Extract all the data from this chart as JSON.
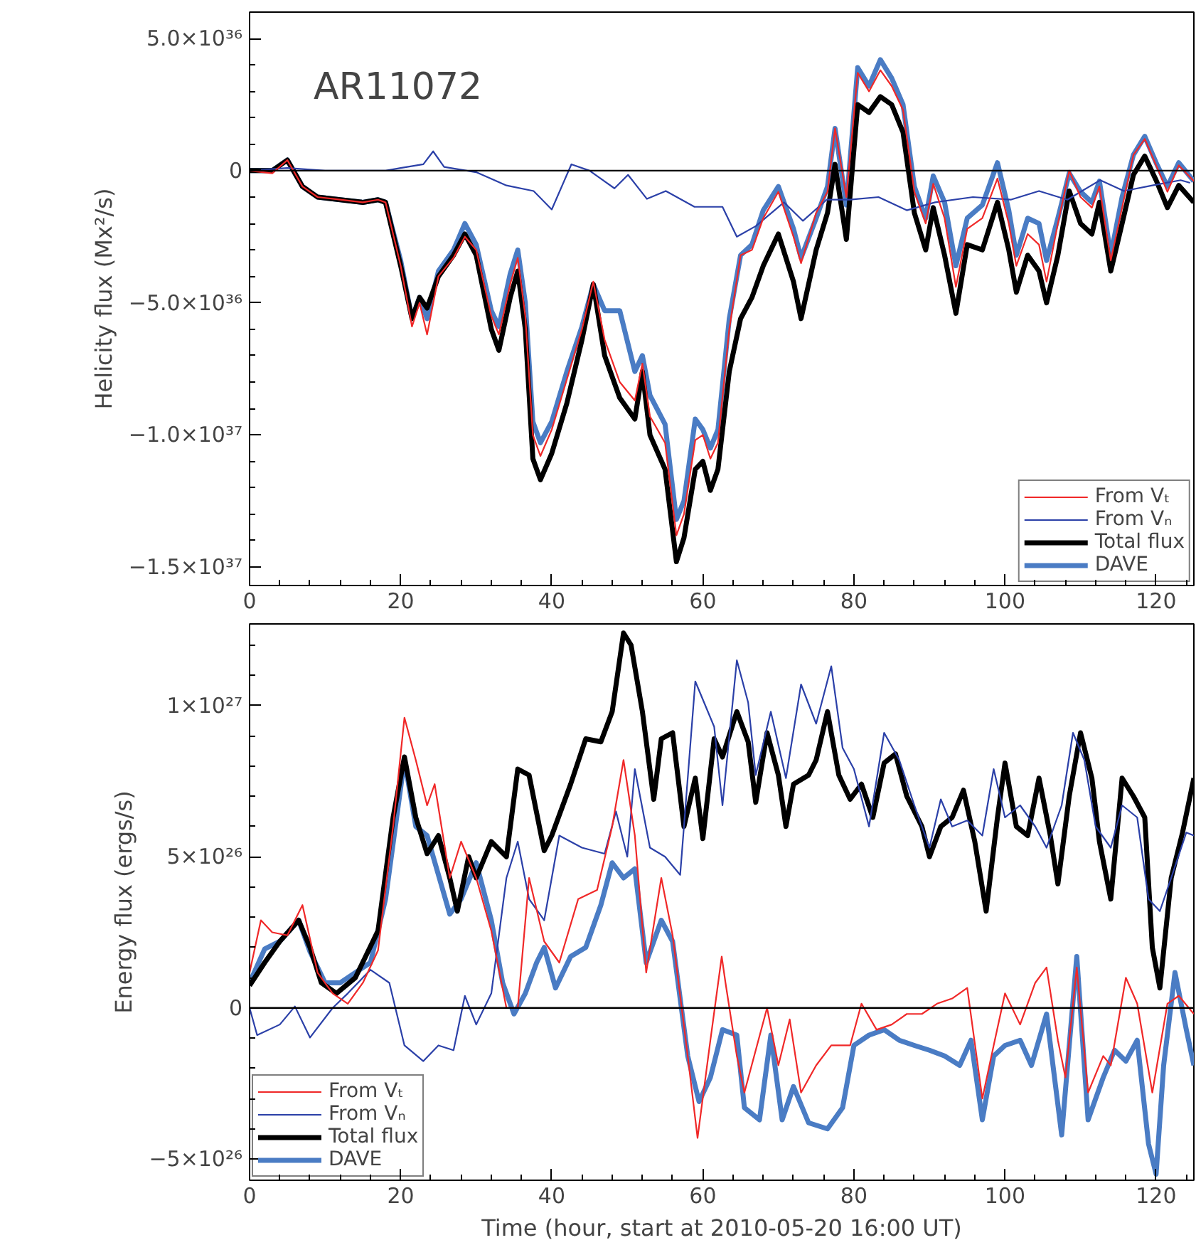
{
  "chart_data": [
    {
      "type": "line",
      "ylabel": "Helicity flux (Mx²/s)",
      "annotations": [
        "AR11072"
      ],
      "legend": "bottom right",
      "grid": false,
      "xlim": [
        0,
        125
      ],
      "xticks": [
        0,
        20,
        40,
        60,
        80,
        100,
        120
      ],
      "ylim": [
        -1.57e+37,
        6e+36
      ],
      "yticks": [
        {
          "value": 5e+36,
          "label": "5.0×10³⁶"
        },
        0,
        {
          "value": -5e+36,
          "label": "−5.0×10³⁶"
        },
        {
          "value": -1e+37,
          "label": "−1.0×10³⁷"
        },
        {
          "value": -1.5e+37,
          "label": "−1.5×10³⁷"
        }
      ],
      "ref_lines": [
        {
          "axis": "y",
          "value": 0,
          "color": "#000000"
        }
      ],
      "series": [
        {
          "name": "From Vₜ",
          "color": "#f02828",
          "x": [
            0,
            3,
            5,
            7,
            9,
            12,
            15,
            17,
            18,
            20,
            21.5,
            22.5,
            23.5,
            25,
            27,
            28.5,
            30,
            32,
            33,
            34.5,
            35.5,
            36.5,
            37.5,
            38.5,
            40,
            42,
            44,
            45.5,
            47,
            49,
            51,
            52,
            53,
            55,
            56.5,
            57.5,
            59,
            60,
            61,
            62,
            63.5,
            65,
            66.5,
            68,
            70,
            72,
            73,
            75,
            76.5,
            77.5,
            79,
            80.5,
            82,
            83.5,
            85,
            86.5,
            88,
            89.5,
            90.5,
            92,
            93.5,
            95,
            97,
            99,
            100.5,
            101.5,
            103,
            104.5,
            105.5,
            107,
            108.5,
            110,
            111.5,
            112.5,
            114,
            115.5,
            117,
            118.5,
            120,
            121.5,
            123,
            125
          ],
          "values": [
            0,
            -1e+35,
            4e+35,
            -6e+35,
            -1e+36,
            -1.1e+36,
            -1.2e+36,
            -1.1e+36,
            -1.2e+36,
            -3.6e+36,
            -5.9e+36,
            -5e+36,
            -6.2e+36,
            -4e+36,
            -3.3e+36,
            -2.5e+36,
            -3e+36,
            -5.5e+36,
            -6.2e+36,
            -4.3e+36,
            -3.3e+36,
            -5.5e+36,
            -1e+37,
            -1.08e+37,
            -9.8e+36,
            -7.9e+36,
            -6e+36,
            -4.2e+36,
            -6.4e+36,
            -8e+36,
            -8.7e+36,
            -7.3e+36,
            -9.3e+36,
            -1.03e+37,
            -1.38e+37,
            -1.3e+37,
            -1.02e+37,
            -1e+37,
            -1.09e+37,
            -1.03e+37,
            -6e+36,
            -3.2e+36,
            -3e+36,
            -1.8e+36,
            -8e+35,
            -2.5e+36,
            -3.5e+36,
            -1.6e+36,
            -8e+35,
            1.6e+36,
            -1e+36,
            3.7e+36,
            3e+36,
            3.8e+36,
            3.2e+36,
            2.3e+36,
            -8e+35,
            -2e+36,
            -5e+35,
            -1.8e+36,
            -4.4e+36,
            -2.2e+36,
            -1.8e+36,
            -3e+35,
            -2e+36,
            -3.6e+36,
            -2.4e+36,
            -2.8e+36,
            -4.2e+36,
            -2e+36,
            0,
            -1e+36,
            -1.4e+36,
            -6e+35,
            -3.4e+36,
            -1.4e+36,
            6e+35,
            1.2e+36,
            2e+35,
            -8e+35,
            2e+35,
            -4e+35
          ]
        },
        {
          "name": "From Vₙ",
          "color": "#2b40a8",
          "x": [
            0,
            5,
            10,
            18,
            20,
            23,
            24.3,
            25.75,
            30,
            34,
            37.6,
            40,
            42.6,
            45,
            48.3,
            50.1,
            52.6,
            55.1,
            58.9,
            62.6,
            64.5,
            67,
            70.75,
            73.25,
            76.4,
            79.5,
            83.25,
            87,
            90.75,
            95.75,
            100.75,
            104.5,
            108.25,
            112.6,
            115.75,
            119.5,
            123.25,
            124.5
          ],
          "values": [
            0,
            1e+35,
            0,
            0,
            1e+35,
            2.4e+35,
            7.3e+35,
            1.4e+35,
            -6e+34,
            -5.6e+35,
            -7.7e+35,
            -1.47e+36,
            2.4e+35,
            0,
            -6.7e+35,
            -1.6e+35,
            -1.07e+36,
            -7.7e+35,
            -1.37e+36,
            -1.37e+36,
            -2.5e+36,
            -2.1e+36,
            -1.2e+36,
            -1.9e+36,
            -1.1e+36,
            -1.1e+36,
            -1e+36,
            -1.5e+36,
            -1.2e+36,
            -1e+36,
            -1.1e+36,
            -7.7e+35,
            -1.1e+36,
            -3.6e+35,
            -7.7e+35,
            -5.6e+35,
            -3.6e+35,
            -4.6e+35
          ]
        },
        {
          "name": "Total flux",
          "color": "#000000",
          "x": [
            0,
            3,
            5,
            7,
            9,
            12,
            15,
            17,
            18,
            20,
            21.5,
            22.5,
            23.5,
            25,
            27,
            28.5,
            30,
            32,
            33,
            34.5,
            35.5,
            36.5,
            37.5,
            38.5,
            40,
            42,
            44,
            45.5,
            47,
            49,
            51,
            52,
            53,
            55,
            56.5,
            57.5,
            59,
            60,
            61,
            62,
            63.5,
            65,
            66.5,
            68,
            70,
            72,
            73,
            75,
            76.5,
            77.5,
            79,
            80.5,
            82,
            83.5,
            85,
            86.5,
            88,
            89.5,
            90.5,
            92,
            93.5,
            95,
            97,
            99,
            100.5,
            101.5,
            103,
            104.5,
            105.5,
            107,
            108.5,
            110,
            111.5,
            112.5,
            114,
            115.5,
            117,
            118.5,
            120,
            121.5,
            123,
            125
          ],
          "values": [
            0,
            0,
            4e+35,
            -6e+35,
            -1e+36,
            -1.1e+36,
            -1.2e+36,
            -1.1e+36,
            -1.2e+36,
            -3.6e+36,
            -5.6e+36,
            -4.8e+36,
            -5.2e+36,
            -4e+36,
            -3.2e+36,
            -2.4e+36,
            -3.2e+36,
            -6e+36,
            -6.8e+36,
            -4.8e+36,
            -3.8e+36,
            -6e+36,
            -1.09e+37,
            -1.17e+37,
            -1.07e+37,
            -8.8e+36,
            -6.4e+36,
            -4.3e+36,
            -7e+36,
            -8.6e+36,
            -9.4e+36,
            -7.6e+36,
            -1e+37,
            -1.13e+37,
            -1.48e+37,
            -1.39e+37,
            -1.13e+37,
            -1.1e+37,
            -1.21e+37,
            -1.13e+37,
            -7.6e+36,
            -5.6e+36,
            -4.8e+36,
            -3.6e+36,
            -2.4e+36,
            -4.2e+36,
            -5.6e+36,
            -3e+36,
            -1.6e+36,
            2.4e+35,
            -2.6e+36,
            2.5e+36,
            2.2e+36,
            2.8e+36,
            2.5e+36,
            1.45e+36,
            -1.6e+36,
            -3e+36,
            -1.4e+36,
            -3.2e+36,
            -5.4e+36,
            -2.8e+36,
            -3e+36,
            -1.2e+36,
            -3e+36,
            -4.6e+36,
            -3.2e+36,
            -3.8e+36,
            -5e+36,
            -3.2e+36,
            -7.7e+35,
            -2e+36,
            -2.4e+36,
            -1.2e+36,
            -3.8e+36,
            -2e+36,
            -1.6e+35,
            5.5e+35,
            -3.6e+35,
            -1.4e+36,
            -5.6e+35,
            -1.2e+36
          ]
        },
        {
          "name": "DAVE",
          "color": "#4a7cc4",
          "x": [
            0,
            3,
            5,
            7,
            9,
            12,
            15,
            17,
            18,
            20,
            21.5,
            22.5,
            23.5,
            25,
            27,
            28.5,
            30,
            32,
            33,
            34.5,
            35.5,
            36.5,
            37.5,
            38.5,
            40,
            42,
            44,
            45.5,
            47,
            49,
            51,
            52,
            53,
            55,
            56.5,
            57.5,
            59,
            60,
            61,
            62,
            63.5,
            65,
            66.5,
            68,
            70,
            72,
            73,
            75,
            76.5,
            77.5,
            79,
            80.5,
            82,
            83.5,
            85,
            86.5,
            88,
            89.5,
            90.5,
            92,
            93.5,
            95,
            97,
            99,
            100.5,
            101.5,
            103,
            104.5,
            105.5,
            107,
            108.5,
            110,
            111.5,
            112.5,
            114,
            115.5,
            117,
            118.5,
            120,
            121.5,
            123,
            125
          ],
          "values": [
            0,
            0,
            4e+35,
            -6e+35,
            -1e+36,
            -1.1e+36,
            -1.2e+36,
            -1.1e+36,
            -1.2e+36,
            -3.4e+36,
            -5.6e+36,
            -4.8e+36,
            -5.6e+36,
            -3.8e+36,
            -3e+36,
            -2e+36,
            -2.8e+36,
            -5.3e+36,
            -5.9e+36,
            -3.9e+36,
            -3e+36,
            -5e+36,
            -9.5e+36,
            -1.03e+37,
            -9.5e+36,
            -7.6e+36,
            -5.9e+36,
            -4.3e+36,
            -5.3e+36,
            -5.3e+36,
            -7.6e+36,
            -7e+36,
            -8.5e+36,
            -9.6e+36,
            -1.32e+37,
            -1.25e+37,
            -9.4e+36,
            -9.8e+36,
            -1.05e+37,
            -9.8e+36,
            -5.6e+36,
            -3.2e+36,
            -2.8e+36,
            -1.5e+36,
            -6e+35,
            -2.2e+36,
            -3.3e+36,
            -1.8e+36,
            -6e+35,
            1.6e+36,
            -1.3e+36,
            3.9e+36,
            3.2e+36,
            4.2e+36,
            3.5e+36,
            2.5e+36,
            -6e+35,
            -1.8e+36,
            -2e+35,
            -1.2e+36,
            -3.6e+36,
            -1.8e+36,
            -1.3e+36,
            3e+35,
            -1.5e+36,
            -3.2e+36,
            -1.8e+36,
            -2e+36,
            -3.4e+36,
            -1.8e+36,
            -1e+35,
            -8e+35,
            -1.2e+36,
            -4e+35,
            -3.2e+36,
            -1e+36,
            6e+35,
            1.3e+36,
            3e+35,
            -6e+35,
            3e+35,
            -4e+35
          ]
        }
      ]
    },
    {
      "type": "line",
      "xlabel": "Time (hour, start at 2010-05-20 16:00 UT)",
      "ylabel": "Energy flux (ergs/s)",
      "legend": "bottom left",
      "grid": false,
      "xlim": [
        0,
        125
      ],
      "xticks": [
        0,
        20,
        40,
        60,
        80,
        100,
        120
      ],
      "ylim": [
        -5.7e+26,
        1.27e+27
      ],
      "yticks": [
        {
          "value": 1e+27,
          "label": "1×10²⁷"
        },
        {
          "value": 5e+26,
          "label": "5×10²⁶"
        },
        0,
        {
          "value": -5e+26,
          "label": "−5×10²⁶"
        }
      ],
      "ref_lines": [
        {
          "axis": "y",
          "value": 0,
          "color": "#000000"
        }
      ],
      "series": [
        {
          "name": "From Vₜ",
          "color": "#f02828",
          "x": [
            0,
            1.5,
            3,
            5,
            7,
            9,
            11,
            13,
            15,
            17,
            19,
            20.5,
            22,
            23.5,
            24.5,
            26.5,
            28,
            30,
            32,
            34,
            35.5,
            37,
            39,
            41,
            43.5,
            46,
            48,
            49.5,
            51,
            52.5,
            54.5,
            56,
            58,
            59.3,
            61,
            62.5,
            63,
            64.5,
            65.5,
            67,
            68.5,
            70,
            71.5,
            73,
            75,
            77,
            79.5,
            81,
            83,
            85,
            87,
            89,
            91,
            93,
            95,
            97,
            98.5,
            100,
            102,
            104,
            105.5,
            107,
            108,
            109.5,
            111,
            113,
            114,
            116,
            117.5,
            119.5,
            121.5,
            123,
            125
          ],
          "values": [
            1.17e+26,
            2.9e+26,
            2.5e+26,
            2.4e+26,
            3.4e+26,
            1.17e+26,
            4.8e+25,
            1.4e+25,
            8.3e+25,
            1.9e+26,
            6e+26,
            9.6e+26,
            8.2e+26,
            6.7e+26,
            7.4e+26,
            4.3e+26,
            5.5e+26,
            4.3e+26,
            2.55e+26,
            0,
            0,
            4.3e+26,
            2.2e+26,
            1.5e+26,
            3.6e+26,
            3.9e+26,
            6e+26,
            8.2e+26,
            5.7e+26,
            1.17e+26,
            4.3e+26,
            2.4e+26,
            -1.59e+26,
            -4.3e+26,
            -1.07e+26,
            1.7e+26,
            8.3e+25,
            -1.59e+26,
            -2.8e+26,
            -1.4e+26,
            0,
            -1.9e+26,
            -3.8e+25,
            -2.8e+26,
            -1.9e+26,
            -1.24e+26,
            -1.24e+26,
            1.4e+25,
            -7.2e+25,
            -5.5e+25,
            -2e+25,
            -2e+25,
            1.4e+25,
            3.1e+25,
            6.6e+25,
            -3e+26,
            -1.24e+26,
            4.8e+25,
            -5.5e+25,
            8.3e+25,
            1.34e+26,
            -1.07e+26,
            -2.3e+26,
            1.34e+26,
            -2.8e+26,
            -1.59e+26,
            -1.9e+26,
            1e+26,
            1.4e+25,
            -2.8e+26,
            1.4e+25,
            4e+25,
            -2e+25
          ]
        },
        {
          "name": "From Vₙ",
          "color": "#2b40a8",
          "x": [
            0,
            1,
            4,
            6,
            8,
            11,
            13,
            16,
            18.5,
            20.5,
            23,
            25,
            27,
            28.5,
            30,
            32,
            34,
            35.5,
            37,
            39,
            41,
            44,
            47,
            48.5,
            50,
            51,
            53,
            55,
            57,
            59,
            60,
            61.5,
            62.6,
            64.5,
            66,
            67,
            69,
            71,
            73,
            75,
            77,
            78.5,
            80,
            82,
            84,
            86,
            88,
            90,
            91.5,
            93,
            95,
            97,
            98.5,
            100,
            102,
            104,
            105.5,
            107.5,
            109,
            110.5,
            112,
            114,
            115.5,
            117.5,
            119,
            120.5,
            122,
            124,
            125
          ],
          "values": [
            0,
            -9e+25,
            -5.5e+25,
            5e+24,
            -9.8e+25,
            0,
            4.8e+25,
            1.26e+26,
            8.3e+25,
            -1.24e+26,
            -1.76e+26,
            -1.24e+26,
            -1.4e+26,
            4e+25,
            -5.5e+25,
            4.8e+25,
            4.3e+26,
            5.5e+26,
            3.6e+26,
            2.9e+26,
            5.7e+26,
            5.3e+26,
            5.1e+26,
            6.5e+26,
            5e+26,
            7.9e+26,
            5.3e+26,
            5e+26,
            4.4e+26,
            1.08e+27,
            1.02e+27,
            9.3e+26,
            6.7e+26,
            1.15e+27,
            1.01e+27,
            7.7e+26,
            9.8e+26,
            7.6e+26,
            1.07e+27,
            9.4e+26,
            1.13e+27,
            8.6e+26,
            7.9e+26,
            6e+26,
            9.1e+26,
            8.2e+26,
            6.7e+26,
            5.3e+26,
            6.9e+26,
            6e+26,
            6.2e+26,
            5.7e+26,
            7.9e+26,
            6.3e+26,
            6.7e+26,
            6e+26,
            5.3e+26,
            6.7e+26,
            9.1e+26,
            8.2e+26,
            6e+26,
            5.3e+26,
            6.7e+26,
            6.3e+26,
            3.6e+26,
            3.2e+26,
            4.3e+26,
            5.8e+26,
            5.7e+26
          ]
        },
        {
          "name": "Total flux",
          "color": "#000000",
          "x": [
            0,
            2,
            4,
            6.5,
            8,
            9.5,
            11.5,
            14,
            17,
            19,
            20.5,
            22,
            23.5,
            25,
            26.5,
            27.5,
            29,
            30,
            32,
            34,
            35.5,
            37,
            39,
            40,
            42.5,
            44.5,
            46.5,
            48,
            49.5,
            50.5,
            52,
            53.5,
            54.5,
            56,
            57.5,
            59,
            60,
            61.5,
            62.6,
            64.5,
            66,
            67,
            68.5,
            70,
            71,
            72,
            74,
            75,
            76.5,
            78,
            79.5,
            81,
            82.5,
            84,
            85.5,
            87,
            89,
            90,
            91.5,
            93,
            94.5,
            96,
            97.5,
            99,
            100,
            101.5,
            103,
            104.5,
            106,
            107,
            108.5,
            110,
            111.5,
            112.5,
            114,
            115.5,
            117,
            118.5,
            119.5,
            120.5,
            122,
            123.5,
            125
          ],
          "values": [
            7.4e+25,
            1.5e+26,
            2.2e+26,
            2.9e+26,
            2e+26,
            8.3e+25,
            4.8e+25,
            1e+26,
            2.55e+26,
            6.3e+26,
            8.3e+26,
            6.3e+26,
            5.1e+26,
            5.7e+26,
            4.3e+26,
            3.2e+26,
            5e+26,
            4.3e+26,
            5.5e+26,
            5e+26,
            7.9e+26,
            7.7e+26,
            5.2e+26,
            5.7e+26,
            7.4e+26,
            8.9e+26,
            8.8e+26,
            9.8e+26,
            1.24e+27,
            1.2e+27,
            9.8e+26,
            6.9e+26,
            8.9e+26,
            9.1e+26,
            6e+26,
            7.6e+26,
            5.6e+26,
            8.9e+26,
            8.3e+26,
            9.8e+26,
            8.8e+26,
            6.8e+26,
            9.1e+26,
            7.7e+26,
            6e+26,
            7.4e+26,
            7.7e+26,
            8.2e+26,
            9.8e+26,
            7.7e+26,
            6.9e+26,
            7.4e+26,
            6.3e+26,
            8.1e+26,
            8.4e+26,
            7e+26,
            6e+26,
            5e+26,
            6e+26,
            6.3e+26,
            7.2e+26,
            5.5e+26,
            3.2e+26,
            6.3e+26,
            8.1e+26,
            6e+26,
            5.7e+26,
            7.6e+26,
            5.7e+26,
            4.1e+26,
            7e+26,
            9.1e+26,
            7.6e+26,
            5.5e+26,
            3.6e+26,
            7.6e+26,
            7e+26,
            6.3e+26,
            2e+26,
            6.6e+25,
            4.3e+26,
            5.8e+26,
            7.6e+26
          ]
        },
        {
          "name": "DAVE",
          "color": "#4a7cc4",
          "x": [
            0,
            2,
            4,
            6.5,
            8,
            10,
            12,
            14,
            16,
            18,
            20.5,
            22,
            23.5,
            26.5,
            28,
            30,
            32,
            33.5,
            35,
            36.5,
            38,
            39,
            40.5,
            42.5,
            44.5,
            46.5,
            48,
            49.5,
            51,
            52.5,
            54.5,
            56,
            58,
            59.5,
            61,
            62.6,
            64.5,
            65.5,
            67.5,
            69,
            70.5,
            72,
            74,
            76.5,
            78.5,
            80,
            82,
            84,
            86,
            88,
            90,
            92,
            94,
            95.5,
            97,
            98.5,
            100,
            102,
            103.5,
            105.5,
            107.5,
            109.5,
            111,
            113,
            114.5,
            116,
            117.5,
            119,
            120,
            121,
            122.5,
            124,
            125
          ],
          "values": [
            8.3e+25,
            1.95e+26,
            2.2e+26,
            2.9e+26,
            1.86e+26,
            8.3e+25,
            8.3e+25,
            1.17e+26,
            1.5e+26,
            3.6e+26,
            8.2e+26,
            6e+26,
            5.7e+26,
            3.1e+26,
            3.6e+26,
            4.8e+26,
            2.9e+26,
            8.3e+25,
            -2e+25,
            4.8e+25,
            1.5e+26,
            2e+26,
            6.6e+25,
            1.7e+26,
            2e+26,
            3.4e+26,
            4.8e+26,
            4.3e+26,
            4.6e+26,
            1.5e+26,
            2.9e+26,
            2.2e+26,
            -1.59e+26,
            -3.1e+26,
            -2.3e+26,
            -7.2e+25,
            -9e+25,
            -3.3e+26,
            -3.7e+26,
            -9e+25,
            -3.7e+26,
            -2.6e+26,
            -3.8e+26,
            -4e+26,
            -3.3e+26,
            -1.24e+26,
            -9e+25,
            -7.2e+25,
            -1.07e+26,
            -1.24e+26,
            -1.4e+26,
            -1.59e+26,
            -1.9e+26,
            -1.07e+26,
            -3.7e+26,
            -1.59e+26,
            -1.24e+26,
            -1.07e+26,
            -1.9e+26,
            -2e+25,
            -4.2e+26,
            1.7e+26,
            -3.7e+26,
            -2.3e+26,
            -1.4e+26,
            -1.76e+26,
            -1.07e+26,
            -4.5e+26,
            -5.5e+26,
            -1.9e+26,
            1.17e+26,
            -7.2e+25,
            -1.9e+26
          ]
        }
      ]
    }
  ]
}
